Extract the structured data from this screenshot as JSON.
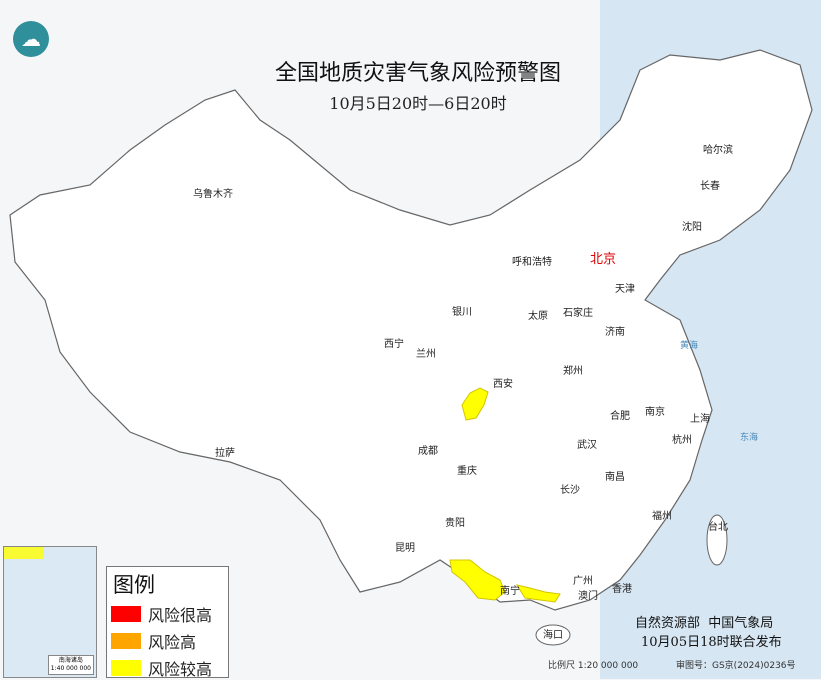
{
  "title": "全国地质灾害气象风险预警图",
  "subtitle": "10月5日20时—6日20时",
  "logo_icon": "cma-logo",
  "colors": {
    "very_high": "#ff0000",
    "high": "#ffa500",
    "moderate": "#ffff00",
    "sea": "#d6e6f3",
    "capital": "#d00000"
  },
  "cities": [
    {
      "name": "乌鲁木齐"
    },
    {
      "name": "哈尔滨"
    },
    {
      "name": "长春"
    },
    {
      "name": "沈阳"
    },
    {
      "name": "北京"
    },
    {
      "name": "天津"
    },
    {
      "name": "呼和浩特"
    },
    {
      "name": "银川"
    },
    {
      "name": "太原"
    },
    {
      "name": "石家庄"
    },
    {
      "name": "济南"
    },
    {
      "name": "西宁"
    },
    {
      "name": "兰州"
    },
    {
      "name": "郑州"
    },
    {
      "name": "西安"
    },
    {
      "name": "合肥"
    },
    {
      "name": "南京"
    },
    {
      "name": "上海"
    },
    {
      "name": "拉萨"
    },
    {
      "name": "成都"
    },
    {
      "name": "武汉"
    },
    {
      "name": "杭州"
    },
    {
      "name": "重庆"
    },
    {
      "name": "南昌"
    },
    {
      "name": "长沙"
    },
    {
      "name": "福州"
    },
    {
      "name": "台北"
    },
    {
      "name": "贵阳"
    },
    {
      "name": "昆明"
    },
    {
      "name": "南宁"
    },
    {
      "name": "广州"
    },
    {
      "name": "澳门"
    },
    {
      "name": "香港"
    },
    {
      "name": "海口"
    }
  ],
  "seas": [
    "黄海",
    "东海"
  ],
  "risk_areas": [
    {
      "region": "陕西南部",
      "level": "风险较高"
    },
    {
      "region": "云南东南部-广西南部",
      "level": "风险较高"
    },
    {
      "region": "广东西南部",
      "level": "风险较高"
    }
  ],
  "legend": {
    "title": "图例",
    "items": [
      {
        "label": "风险很高",
        "color": "#ff0000"
      },
      {
        "label": "风险高",
        "color": "#ffa500"
      },
      {
        "label": "风险较高",
        "color": "#ffff00"
      }
    ]
  },
  "inset": {
    "title": "南海诸岛",
    "scale": "1:40 000 000"
  },
  "footer": {
    "issuer": "自然资源部  中国气象局",
    "issued": "10月05日18时联合发布",
    "scale": "比例尺 1:20 000 000",
    "approval": "审图号：GS京(2024)0236号"
  }
}
